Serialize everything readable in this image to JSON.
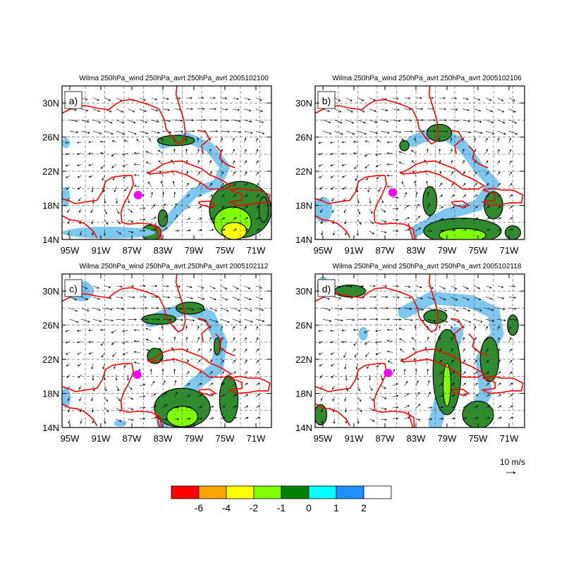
{
  "panels": [
    {
      "id": "a",
      "tag": "a)",
      "title": "Wilma 250hPa_wind 250hPa_avrt 250hPa_avrt 2005102100",
      "storm": [
        -86.2,
        19.2
      ]
    },
    {
      "id": "b",
      "tag": "b)",
      "title": "Wilma 250hPa_wind 250hPa_avrt 250hPa_avrt 2005102106",
      "storm": [
        -86.0,
        19.5
      ]
    },
    {
      "id": "c",
      "tag": "c)",
      "title": "Wilma 250hPa_wind 250hPa_avrt 250hPa_avrt 2005102112",
      "storm": [
        -86.3,
        20.2
      ]
    },
    {
      "id": "d",
      "tag": "d)",
      "title": "Wilma 250hPa_wind 250hPa_avrt 250hPa_avrt 2005102118",
      "storm": [
        -86.6,
        20.4
      ]
    }
  ],
  "axes": {
    "lon_range": [
      -96,
      -69
    ],
    "lat_range": [
      14,
      32
    ],
    "x_ticks": [
      {
        "value": -95,
        "label": "95W"
      },
      {
        "value": -91,
        "label": "91W"
      },
      {
        "value": -87,
        "label": "87W"
      },
      {
        "value": -83,
        "label": "83W"
      },
      {
        "value": -79,
        "label": "79W"
      },
      {
        "value": -75,
        "label": "75W"
      },
      {
        "value": -71,
        "label": "71W"
      }
    ],
    "y_ticks": [
      {
        "value": 14,
        "label": "14N"
      },
      {
        "value": 18,
        "label": "18N"
      },
      {
        "value": 22,
        "label": "22N"
      },
      {
        "value": 26,
        "label": "26N"
      },
      {
        "value": 30,
        "label": "30N"
      }
    ]
  },
  "reference_vector": {
    "label": "10 m/s"
  },
  "colorbar": {
    "colors": [
      "#ff0000",
      "#ffa500",
      "#ffff00",
      "#7fff00",
      "#008000",
      "#00ffff",
      "#1e90ff",
      "#ffffff"
    ],
    "labels": [
      "-6",
      "-4",
      "-2",
      "-1",
      "0",
      "1",
      "2"
    ]
  },
  "colors": {
    "coastline": "#ff0000",
    "storm_marker": "#ff00ff",
    "contour_line": "#000000",
    "vector": "#000000"
  }
}
